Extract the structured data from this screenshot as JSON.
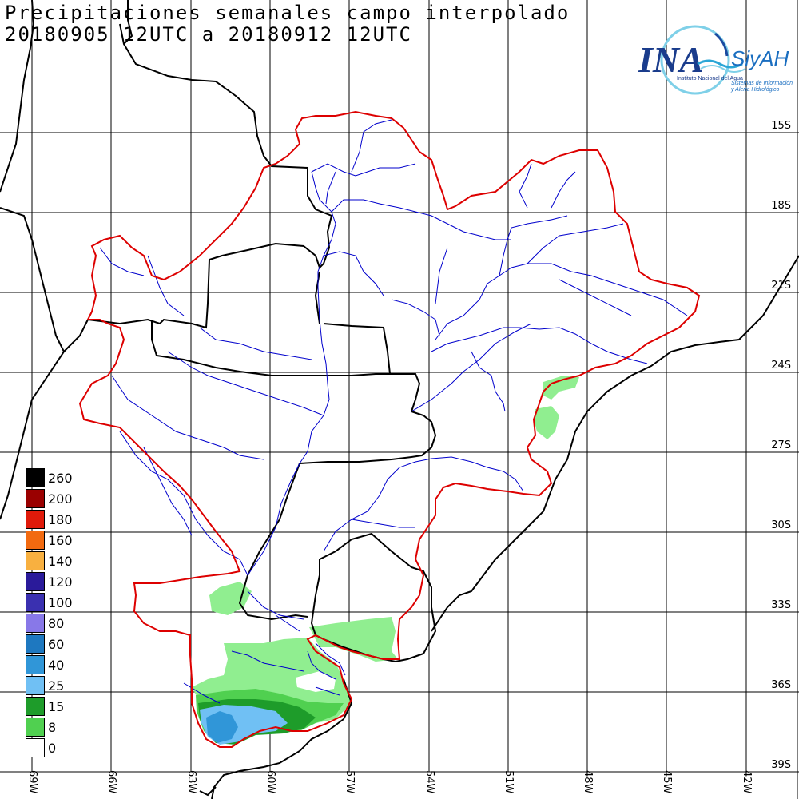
{
  "title": {
    "line1": "Precipitaciones semanales campo interpolado",
    "line2": "20180905 12UTC a 20180912 12UTC"
  },
  "latitude_labels": [
    "15S",
    "18S",
    "21S",
    "24S",
    "27S",
    "30S",
    "33S",
    "36S",
    "39S"
  ],
  "longitude_labels": [
    "69W",
    "66W",
    "63W",
    "60W",
    "57W",
    "54W",
    "51W",
    "48W",
    "45W",
    "42W"
  ],
  "legend": {
    "items": [
      {
        "label": "260",
        "color": "#000000"
      },
      {
        "label": "200",
        "color": "#9a0000"
      },
      {
        "label": "180",
        "color": "#e01a0a"
      },
      {
        "label": "160",
        "color": "#f26a10"
      },
      {
        "label": "140",
        "color": "#f8b040"
      },
      {
        "label": "120",
        "color": "#2a1a9a"
      },
      {
        "label": "100",
        "color": "#3a30b0"
      },
      {
        "label": "80",
        "color": "#8878e8"
      },
      {
        "label": "60",
        "color": "#1e78c0"
      },
      {
        "label": "40",
        "color": "#3096d8"
      },
      {
        "label": "25",
        "color": "#70c0f4"
      },
      {
        "label": "15",
        "color": "#1e9c2a"
      },
      {
        "label": "8",
        "color": "#50d050"
      },
      {
        "label": "0",
        "color": "#ffffff"
      }
    ]
  },
  "logo": {
    "name": "INA",
    "brand": "SiyAH",
    "sub1": "Instituto Nacional del Agua",
    "sub2": "Sistemas de Información",
    "sub3": "y Alerta Hidrológico"
  },
  "colors": {
    "basin_outline": "#dd0000",
    "rivers": "#0000cc",
    "borders": "#000000",
    "light_green": "#90ee90",
    "mid_green": "#50d050",
    "dark_green": "#1e9c2a",
    "light_blue": "#70c0f4",
    "blue": "#3096d8"
  }
}
